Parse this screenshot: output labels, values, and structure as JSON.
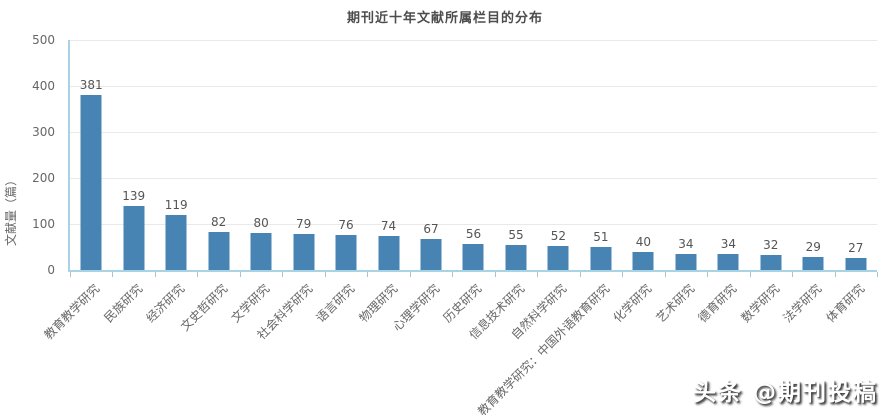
{
  "page": {
    "title": "期刊近十年文献所属栏目的分布",
    "watermark": "头条 @期刊投稿"
  },
  "colors": {
    "bar": "#4783b3",
    "axis_line": "#a7d3e4",
    "gridline": "#e9e9e9",
    "title_text": "#4d4d4d",
    "label_text": "#666666",
    "value_text": "#555555"
  },
  "chart_data": {
    "type": "bar",
    "title": "期刊近十年文献所属栏目的分布",
    "xlabel": "",
    "ylabel": "文献量（篇）",
    "ylim": [
      0,
      500
    ],
    "yticks": [
      0,
      100,
      200,
      300,
      400,
      500
    ],
    "grid": true,
    "legend_position": "none",
    "categories": [
      "教育教学研究",
      "民族研究",
      "经济研究",
      "文史哲研究",
      "文学研究",
      "社会科学研究",
      "语言研究",
      "物理研究",
      "心理学研究",
      "历史研究",
      "信息技术研究",
      "自然科学研究",
      "教育教学研究：中国外语教育研究",
      "化学研究",
      "艺术研究",
      "德育研究",
      "数学研究",
      "法学研究",
      "体育研究"
    ],
    "values": [
      381,
      139,
      119,
      82,
      80,
      79,
      76,
      74,
      67,
      56,
      55,
      52,
      51,
      40,
      34,
      34,
      32,
      29,
      27
    ]
  }
}
